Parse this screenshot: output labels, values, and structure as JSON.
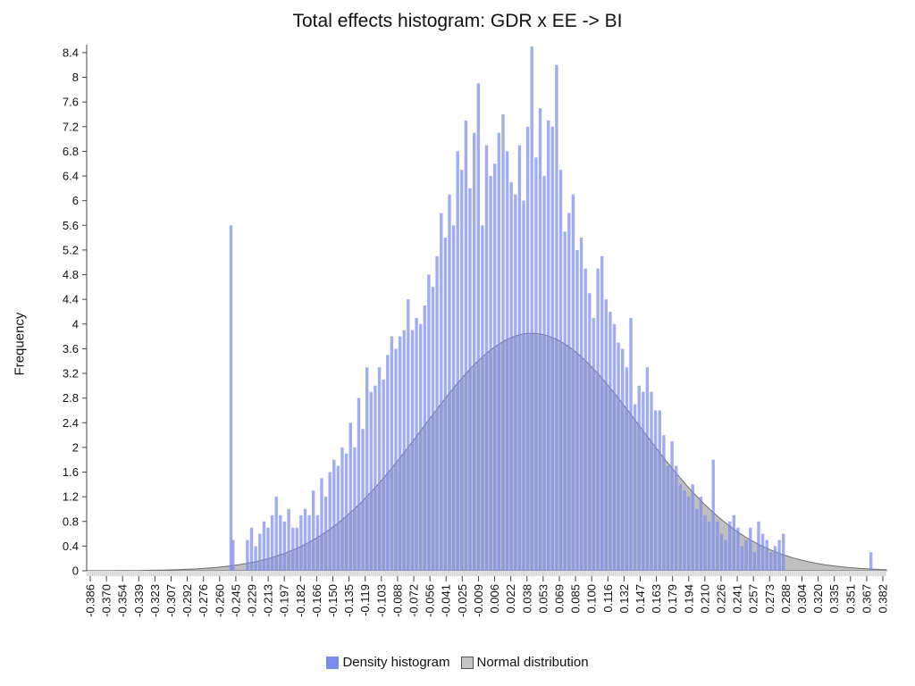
{
  "chart_data": {
    "type": "bar",
    "title": "Total effects histogram: GDR x EE -> BI",
    "ylabel": "Frequency",
    "xlabel": "",
    "ylim": [
      0,
      8.5
    ],
    "xlim": [
      -0.386,
      0.39
    ],
    "y_ticks": [
      "0",
      "0.4",
      "0.8",
      "1.2",
      "1.6",
      "2",
      "2.4",
      "2.8",
      "3.2",
      "3.6",
      "4",
      "4.4",
      "4.8",
      "5.2",
      "5.6",
      "6",
      "6.4",
      "6.8",
      "7.2",
      "7.6",
      "8",
      "8.4"
    ],
    "x_ticks": [
      "-0.386",
      "-0.370",
      "-0.354",
      "-0.339",
      "-0.323",
      "-0.307",
      "-0.292",
      "-0.276",
      "-0.260",
      "-0.245",
      "-0.229",
      "-0.213",
      "-0.197",
      "-0.182",
      "-0.166",
      "-0.150",
      "-0.135",
      "-0.119",
      "-0.103",
      "-0.088",
      "-0.072",
      "-0.056",
      "-0.041",
      "-0.025",
      "-0.009",
      "0.006",
      "0.022",
      "0.038",
      "0.053",
      "0.069",
      "0.085",
      "0.100",
      "0.116",
      "0.132",
      "0.147",
      "0.163",
      "0.179",
      "0.194",
      "0.210",
      "0.226",
      "0.241",
      "0.257",
      "0.273",
      "0.288",
      "0.304",
      "0.320",
      "0.335",
      "0.351",
      "0.367",
      "0.382"
    ],
    "grid": false,
    "legend_position": "bottom",
    "series": [
      {
        "name": "Density histogram",
        "color": "#7b8cf0",
        "x": [
          -0.246,
          -0.244,
          -0.23,
          -0.226,
          -0.222,
          -0.218,
          -0.214,
          -0.21,
          -0.206,
          -0.202,
          -0.198,
          -0.194,
          -0.19,
          -0.186,
          -0.182,
          -0.178,
          -0.174,
          -0.17,
          -0.166,
          -0.162,
          -0.158,
          -0.154,
          -0.15,
          -0.146,
          -0.142,
          -0.138,
          -0.134,
          -0.13,
          -0.126,
          -0.122,
          -0.118,
          -0.114,
          -0.11,
          -0.106,
          -0.102,
          -0.098,
          -0.094,
          -0.09,
          -0.086,
          -0.082,
          -0.078,
          -0.074,
          -0.07,
          -0.066,
          -0.062,
          -0.058,
          -0.054,
          -0.05,
          -0.046,
          -0.042,
          -0.038,
          -0.034,
          -0.03,
          -0.026,
          -0.022,
          -0.018,
          -0.014,
          -0.01,
          -0.006,
          -0.002,
          0.002,
          0.006,
          0.01,
          0.014,
          0.018,
          0.022,
          0.026,
          0.03,
          0.034,
          0.038,
          0.042,
          0.046,
          0.05,
          0.054,
          0.058,
          0.062,
          0.066,
          0.07,
          0.074,
          0.078,
          0.082,
          0.086,
          0.09,
          0.094,
          0.098,
          0.102,
          0.106,
          0.11,
          0.114,
          0.118,
          0.122,
          0.126,
          0.13,
          0.134,
          0.138,
          0.142,
          0.146,
          0.15,
          0.154,
          0.158,
          0.162,
          0.166,
          0.17,
          0.174,
          0.178,
          0.182,
          0.186,
          0.19,
          0.194,
          0.198,
          0.202,
          0.206,
          0.21,
          0.214,
          0.218,
          0.222,
          0.226,
          0.23,
          0.234,
          0.238,
          0.242,
          0.246,
          0.25,
          0.254,
          0.258,
          0.262,
          0.266,
          0.27,
          0.274,
          0.278,
          0.282,
          0.286,
          0.29,
          0.375
        ],
        "values": [
          5.6,
          0.5,
          0.5,
          0.7,
          0.4,
          0.6,
          0.8,
          0.7,
          0.9,
          1.2,
          0.9,
          0.8,
          1.0,
          0.7,
          0.7,
          0.9,
          1.0,
          0.9,
          1.3,
          0.9,
          1.5,
          1.2,
          1.6,
          1.8,
          1.7,
          2.0,
          1.9,
          2.4,
          2.0,
          2.8,
          2.3,
          3.3,
          2.9,
          3.0,
          3.3,
          3.1,
          3.5,
          3.8,
          3.6,
          3.8,
          3.9,
          4.4,
          3.9,
          4.1,
          4.0,
          4.3,
          4.8,
          4.6,
          5.1,
          5.8,
          5.4,
          6.1,
          5.6,
          6.8,
          6.5,
          7.3,
          6.2,
          7.1,
          7.9,
          5.6,
          6.9,
          6.4,
          6.6,
          7.1,
          7.4,
          6.8,
          6.3,
          6.1,
          6.9,
          6.0,
          7.2,
          8.5,
          6.7,
          7.5,
          6.4,
          7.3,
          7.2,
          8.2,
          6.5,
          5.5,
          5.8,
          6.1,
          5.2,
          5.4,
          4.9,
          4.5,
          4.1,
          4.9,
          5.1,
          4.4,
          4.2,
          4.0,
          3.7,
          3.6,
          3.3,
          4.1,
          2.7,
          3.0,
          2.9,
          3.3,
          2.9,
          2.6,
          2.6,
          2.2,
          1.7,
          2.1,
          1.7,
          1.4,
          1.3,
          1.2,
          1.4,
          1.0,
          1.2,
          0.9,
          0.8,
          1.8,
          0.8,
          0.6,
          0.5,
          0.8,
          0.9,
          0.7,
          0.4,
          0.5,
          0.7,
          0.3,
          0.8,
          0.6,
          0.5,
          0.3,
          0.4,
          0.5,
          0.6,
          0.3
        ]
      },
      {
        "name": "Normal distribution",
        "color": "#9a9a9a",
        "mean": 0.046,
        "std": 0.105,
        "peak": 3.85
      }
    ]
  }
}
